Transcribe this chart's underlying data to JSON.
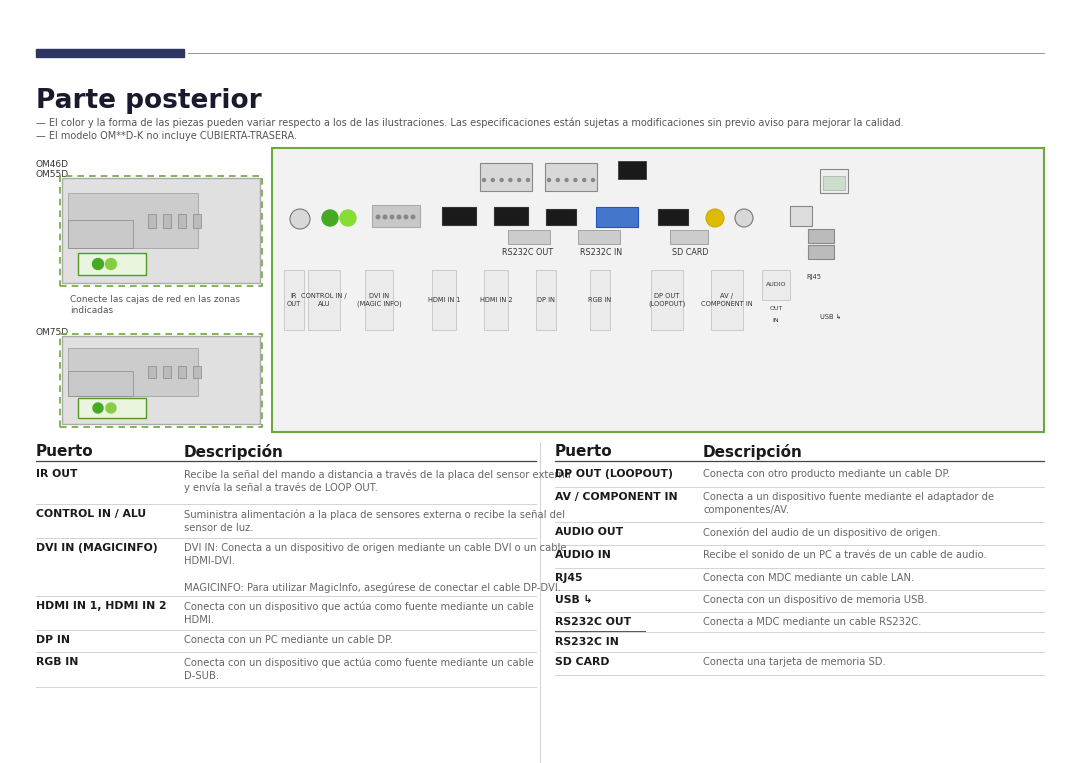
{
  "title": "Parte posterior",
  "bg_color": "#ffffff",
  "title_color": "#1a1a2e",
  "header_line_dark": "#2d3561",
  "header_line_light": "#8899aa",
  "text_color_dark": "#1a1a1a",
  "text_color_body": "#666666",
  "separator_color": "#cccccc",
  "note_color": "#555555",
  "notes": [
    "— El color y la forma de las piezas pueden variar respecto a los de las ilustraciones. Las especificaciones están sujetas a modificaciones sin previo aviso para mejorar la calidad.",
    "— El modelo OM**D-K no incluye CUBIERTA-TRASERA."
  ],
  "left_table": {
    "header_port": "Puerto",
    "header_desc": "Descripción",
    "rows": [
      {
        "port": "IR OUT",
        "desc": "Recibe la señal del mando a distancia a través de la placa del sensor externa\ny envía la señal a través de LOOP OUT."
      },
      {
        "port": "CONTROL IN / ALU",
        "desc": "Suministra alimentación a la placa de sensores externa o recibe la señal del\nsensor de luz."
      },
      {
        "port": "DVI IN (MAGICINFO)",
        "desc": "DVI IN: Conecta a un dispositivo de origen mediante un cable DVI o un cable\nHDMI-DVI.\n\nMAGICINFO: Para utilizar MagicInfo, asegúrese de conectar el cable DP-DVI."
      },
      {
        "port": "HDMI IN 1, HDMI IN 2",
        "desc": "Conecta con un dispositivo que actúa como fuente mediante un cable\nHDMI."
      },
      {
        "port": "DP IN",
        "desc": "Conecta con un PC mediante un cable DP."
      },
      {
        "port": "RGB IN",
        "desc": "Conecta con un dispositivo que actúa como fuente mediante un cable\nD-SUB."
      }
    ]
  },
  "right_table": {
    "header_port": "Puerto",
    "header_desc": "Descripción",
    "rows": [
      {
        "port": "DP OUT (LOOPOUT)",
        "desc": "Conecta con otro producto mediante un cable DP."
      },
      {
        "port": "AV / COMPONENT IN",
        "desc": "Conecta a un dispositivo fuente mediante el adaptador de\ncomponentes/AV."
      },
      {
        "port": "AUDIO OUT",
        "desc": "Conexión del audio de un dispositivo de origen."
      },
      {
        "port": "AUDIO IN",
        "desc": "Recibe el sonido de un PC a través de un cable de audio."
      },
      {
        "port": "RJ45",
        "desc": "Conecta con MDC mediante un cable LAN."
      },
      {
        "port": "USB ↳",
        "desc": "Conecta con un dispositivo de memoria USB."
      },
      {
        "port": "RS232C OUT",
        "desc": "Conecta a MDC mediante un cable RS232C."
      },
      {
        "port": "RS232C IN",
        "desc": ""
      },
      {
        "port": "SD CARD",
        "desc": "Conecta una tarjeta de memoria SD."
      }
    ]
  },
  "diagram_border_color": "#6aaa3a",
  "diagram_box_color": "#f2f2f2"
}
